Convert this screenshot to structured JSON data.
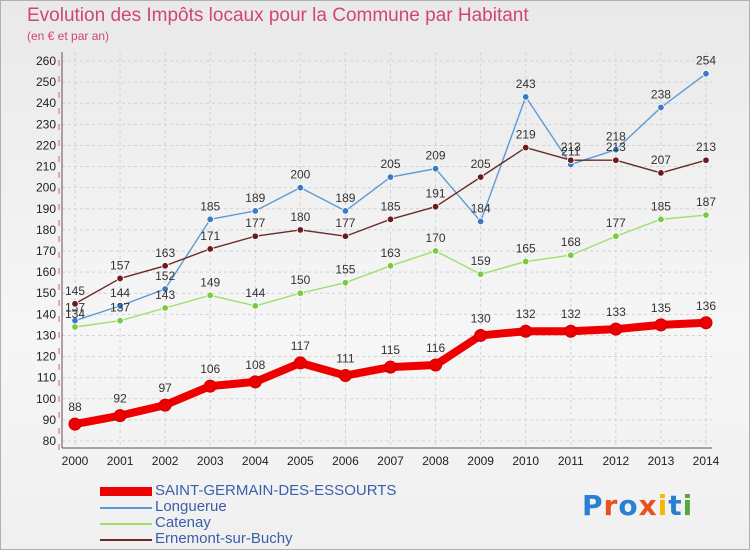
{
  "title": "Evolution des Impôts locaux pour la Commune par Habitant",
  "subtitle": "(en € et par an)",
  "logo": {
    "text": "Proxiti",
    "colors": [
      "#2b7fd1",
      "#e8501d",
      "#2b7fd1",
      "#e8501d",
      "#f6b800",
      "#2b7fd1",
      "#55a83a"
    ]
  },
  "chart_data": {
    "type": "line",
    "x": [
      "2000",
      "2001",
      "2002",
      "2003",
      "2004",
      "2005",
      "2006",
      "2007",
      "2008",
      "2009",
      "2010",
      "2011",
      "2012",
      "2013",
      "2014"
    ],
    "ylim": [
      80,
      260
    ],
    "yticks": [
      80,
      90,
      100,
      110,
      120,
      130,
      140,
      150,
      160,
      170,
      180,
      190,
      200,
      210,
      220,
      230,
      240,
      250,
      260
    ],
    "grid": true,
    "legend": "bottom-left",
    "series": [
      {
        "name": "Longuerue",
        "color": "#5b9bd5",
        "marker": "#3a7bc8",
        "values": [
          137,
          144,
          152,
          185,
          189,
          200,
          189,
          205,
          209,
          184,
          243,
          211,
          218,
          238,
          254
        ],
        "labels": [
          "137",
          "144",
          "152",
          "185",
          "189",
          "200",
          "189",
          "205",
          "209",
          "184",
          "243",
          "211",
          "218",
          "238",
          "254"
        ]
      },
      {
        "name": "Catenay",
        "color": "#9ee06a",
        "marker": "#7ac943",
        "values": [
          134,
          137,
          143,
          149,
          144,
          150,
          155,
          163,
          170,
          159,
          165,
          168,
          177,
          185,
          187
        ],
        "labels": [
          "134",
          "137",
          "143",
          "149",
          "144",
          "150",
          "155",
          "163",
          "170",
          "159",
          "165",
          "168",
          "177",
          "185",
          "187"
        ]
      },
      {
        "name": "Ernemont-sur-Buchy",
        "color": "#6b2a2a",
        "marker": "#6b1b1b",
        "values": [
          145,
          157,
          163,
          171,
          177,
          180,
          177,
          185,
          191,
          205,
          219,
          213,
          213,
          207,
          213
        ],
        "labels": [
          "145",
          "157",
          "163",
          "171",
          "177",
          "180",
          "177",
          "185",
          "191",
          "205",
          "219",
          "213",
          "213",
          "207",
          "213"
        ]
      },
      {
        "name": "SAINT-GERMAIN-DES-ESSOURTS",
        "color": "#ee0000",
        "marker": "#ee0000",
        "values": [
          88,
          92,
          97,
          106,
          108,
          117,
          111,
          115,
          116,
          130,
          132,
          132,
          133,
          135,
          136
        ],
        "labels": [
          "88",
          "92",
          "97",
          "106",
          "108",
          "117",
          "111",
          "115",
          "116",
          "130",
          "132",
          "132",
          "133",
          "135",
          "136"
        ]
      }
    ],
    "legend_order": [
      "SAINT-GERMAIN-DES-ESSOURTS",
      "Longuerue",
      "Catenay",
      "Ernemont-sur-Buchy"
    ]
  }
}
